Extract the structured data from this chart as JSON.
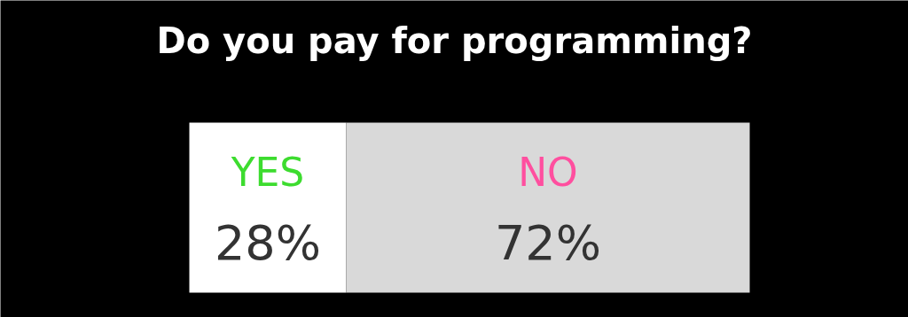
{
  "chart_data": {
    "type": "bar",
    "orientation": "horizontal",
    "stacked": true,
    "title": "Do you pay for programming?",
    "categories": [
      null
    ],
    "xlim": [
      0,
      100
    ],
    "tick_labels": false,
    "grid": false,
    "series": [
      {
        "name": "YES",
        "color": "#ffffff",
        "values": [
          28
        ],
        "value_labels": [
          "28%"
        ]
      },
      {
        "name": "NO",
        "color": "#d9d9d9",
        "values": [
          72
        ],
        "value_labels": [
          "72%"
        ]
      }
    ]
  }
}
